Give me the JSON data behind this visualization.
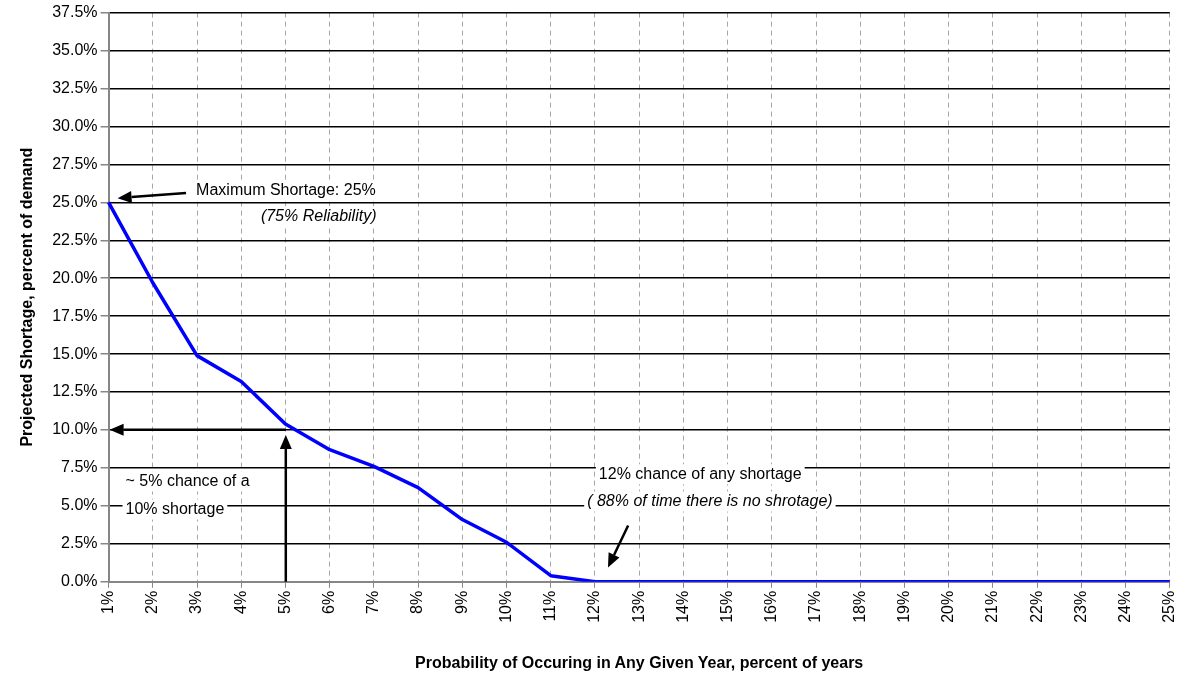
{
  "chart_data": {
    "type": "line",
    "xlabel": "Probability of Occuring in Any Given Year, percent of years",
    "ylabel": "Projected Shortage, percent of demand",
    "categories": [
      "1%",
      "2%",
      "3%",
      "4%",
      "5%",
      "6%",
      "7%",
      "8%",
      "9%",
      "10%",
      "11%",
      "12%",
      "13%",
      "14%",
      "15%",
      "16%",
      "17%",
      "18%",
      "19%",
      "20%",
      "21%",
      "22%",
      "23%",
      "24%",
      "25%"
    ],
    "series": [
      {
        "color": "#0000ff",
        "values": [
          25,
          19.7,
          14.9,
          13.2,
          10.4,
          8.7,
          7.6,
          6.2,
          4.1,
          2.6,
          0.4,
          0,
          0,
          0,
          0,
          0,
          0,
          0,
          0,
          0,
          0,
          0,
          0,
          0,
          0
        ]
      }
    ],
    "ylim": [
      0,
      37.5
    ],
    "yticks": [
      {
        "value": 0,
        "label": "0.0%"
      },
      {
        "value": 2.5,
        "label": "2.5%"
      },
      {
        "value": 5,
        "label": "5.0%"
      },
      {
        "value": 7.5,
        "label": "7.5%"
      },
      {
        "value": 10,
        "label": "10.0%"
      },
      {
        "value": 12.5,
        "label": "12.5%"
      },
      {
        "value": 15,
        "label": "15.0%"
      },
      {
        "value": 17.5,
        "label": "17.5%"
      },
      {
        "value": 20,
        "label": "20.0%"
      },
      {
        "value": 22.5,
        "label": "22.5%"
      },
      {
        "value": 25,
        "label": "25.0%"
      },
      {
        "value": 27.5,
        "label": "27.5%"
      },
      {
        "value": 30,
        "label": "30.0%"
      },
      {
        "value": 32.5,
        "label": "32.5%"
      },
      {
        "value": 35,
        "label": "35.0%"
      },
      {
        "value": 37.5,
        "label": "37.5%"
      }
    ],
    "annotations": [
      "Maximum Shortage: 25%",
      "(75% Reliability)",
      "~ 5% chance of a 10% shortage",
      "12% chance of any shortage",
      "( 88% of time there is no shrotage)"
    ],
    "grid": true,
    "legend": false,
    "marker": "none",
    "line_style": "solid"
  }
}
